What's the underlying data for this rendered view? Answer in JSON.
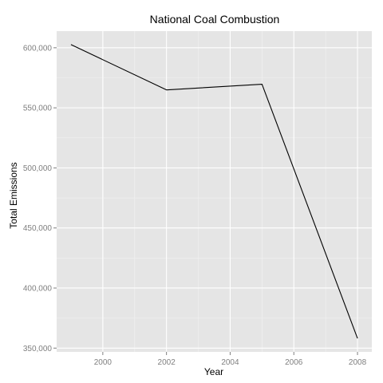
{
  "chart_data": {
    "type": "line",
    "title": "National Coal Combustion",
    "xlabel": "Year",
    "ylabel": "Total Emissions",
    "x": [
      1999,
      2002,
      2005,
      2008
    ],
    "series": [
      {
        "values": [
          602624,
          564936,
          569655,
          358084
        ]
      }
    ],
    "xlim": [
      1998.55,
      2008.45
    ],
    "ylim": [
      346858,
      613850
    ],
    "x_ticks": [
      2000,
      2002,
      2004,
      2006,
      2008
    ],
    "x_tick_labels": [
      "2000",
      "2002",
      "2004",
      "2006",
      "2008"
    ],
    "y_ticks": [
      350000,
      400000,
      450000,
      500000,
      550000,
      600000
    ],
    "y_tick_labels": [
      "350,000",
      "400,000",
      "450,000",
      "500,000",
      "550,000",
      "600,000"
    ],
    "grid": true,
    "legend": "none",
    "colors": {
      "panel_background": "#e5e5e5",
      "grid_major": "#ffffff",
      "grid_minor": "#f2f2f2",
      "line": "#000000",
      "tick_text": "#7f7f7f"
    }
  }
}
